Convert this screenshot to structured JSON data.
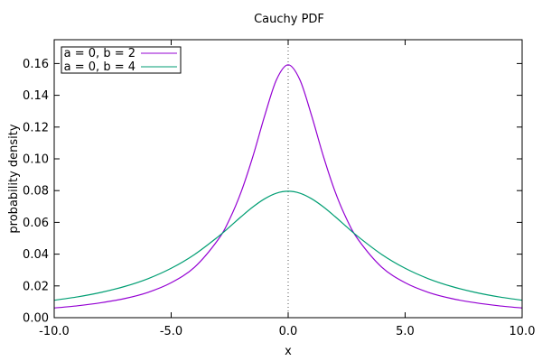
{
  "chart_data": {
    "type": "line",
    "title": "Cauchy PDF",
    "xlabel": "x",
    "ylabel": "probability density",
    "xlim": [
      -10.0,
      10.0
    ],
    "ylim": [
      0.0,
      0.175
    ],
    "x_ticks": [
      -10.0,
      -5.0,
      0.0,
      5.0,
      10.0
    ],
    "x_tick_labels": [
      "-10.0",
      "-5.0",
      "0.0",
      "5.0",
      "10.0"
    ],
    "y_ticks": [
      0.0,
      0.02,
      0.04,
      0.06,
      0.08,
      0.1,
      0.12,
      0.14,
      0.16
    ],
    "y_tick_labels": [
      "0.00",
      "0.02",
      "0.04",
      "0.06",
      "0.08",
      "0.10",
      "0.12",
      "0.14",
      "0.16"
    ],
    "grid": false,
    "legend_position": "top-left",
    "reference_line": {
      "x": 0.0,
      "style": "dotted",
      "color": "#555555"
    },
    "series": [
      {
        "name": "a = 0, b = 2",
        "color": "#9400d3",
        "x": [
          -10,
          -9,
          -8,
          -7,
          -6,
          -5,
          -4,
          -3,
          -2.5,
          -2,
          -1.5,
          -1,
          -0.5,
          0,
          0.5,
          1,
          1.5,
          2,
          2.5,
          3,
          4,
          5,
          6,
          7,
          8,
          9,
          10
        ],
        "y": [
          0.0061,
          0.0075,
          0.0094,
          0.012,
          0.0159,
          0.022,
          0.0318,
          0.049,
          0.0621,
          0.0796,
          0.1019,
          0.1273,
          0.1498,
          0.1592,
          0.1498,
          0.1273,
          0.1019,
          0.0796,
          0.0621,
          0.049,
          0.0318,
          0.022,
          0.0159,
          0.012,
          0.0094,
          0.0075,
          0.0061
        ]
      },
      {
        "name": "a = 0, b = 4",
        "color": "#009e73",
        "x": [
          -10,
          -9,
          -8,
          -7,
          -6,
          -5,
          -4,
          -3,
          -2.5,
          -2,
          -1.5,
          -1,
          -0.5,
          0,
          0.5,
          1,
          1.5,
          2,
          2.5,
          3,
          4,
          5,
          6,
          7,
          8,
          9,
          10
        ],
        "y": [
          0.011,
          0.0131,
          0.0159,
          0.0196,
          0.0245,
          0.0311,
          0.0398,
          0.0509,
          0.0572,
          0.0637,
          0.0698,
          0.0749,
          0.0784,
          0.0796,
          0.0784,
          0.0749,
          0.0698,
          0.0637,
          0.0572,
          0.0509,
          0.0398,
          0.0311,
          0.0245,
          0.0196,
          0.0159,
          0.0131,
          0.011
        ]
      }
    ]
  }
}
